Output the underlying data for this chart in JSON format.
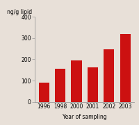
{
  "categories": [
    "1996",
    "1998",
    "2000",
    "2001",
    "2002",
    "2003"
  ],
  "values": [
    90,
    157,
    195,
    163,
    248,
    320
  ],
  "bar_color": "#cc1111",
  "ylabel": "ng/g lipid",
  "xlabel": "Year of sampling",
  "ylim": [
    0,
    400
  ],
  "yticks": [
    0,
    100,
    200,
    300,
    400
  ],
  "title": "",
  "bar_width": 0.65,
  "background_color": "#e8e0d8",
  "axis_background": "#e8e0d8",
  "tick_fontsize": 5.5,
  "label_fontsize": 5.5,
  "ylabel_fontsize": 5.5
}
